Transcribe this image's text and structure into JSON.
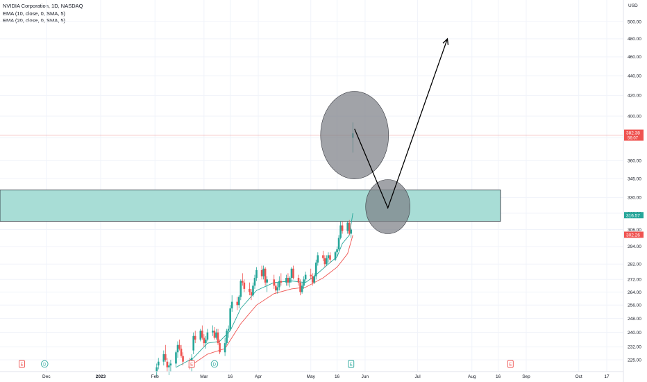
{
  "legend": {
    "symbol": "NVIDIA Corporation, 1D, NASDAQ",
    "ema1": "EMA (10, close, 0, SMA, 5)",
    "ema2": "EMA (20, close, 0, SMA, 5)"
  },
  "colors": {
    "up": "#26a69a",
    "down": "#ef5350",
    "ema10": "#26a69a",
    "ema20": "#ef5350",
    "zone_fill": "#a8ddd6",
    "circle_fill": "#7d7f87",
    "grid": "#f0f3fa",
    "axis_text": "#131722"
  },
  "chart_data": {
    "type": "candlestick",
    "currency": "USD",
    "y_ticks": [
      "500.00",
      "480.00",
      "460.00",
      "440.00",
      "420.00",
      "400.00",
      "380.00",
      "360.00",
      "345.00",
      "330.00",
      "318.00",
      "306.00",
      "294.00",
      "282.00",
      "272.00",
      "264.00",
      "256.00",
      "248.00",
      "240.00",
      "232.00",
      "225.00"
    ],
    "y_tick_values": [
      500,
      480,
      460,
      440,
      420,
      400,
      380,
      360,
      345,
      330,
      318,
      306,
      294,
      282,
      272,
      264,
      256,
      248,
      240,
      232,
      225
    ],
    "ylim": [
      221,
      512
    ],
    "log_scale": true,
    "x_ticks": [
      "Dec",
      "2023",
      "Feb",
      "Mar",
      "16",
      "Apr",
      "May",
      "16",
      "Jun",
      "Jul",
      "Aug",
      "16",
      "Sep",
      "Oct",
      "17"
    ],
    "x_tick_dates": [
      "2022-12-01",
      "2023-01-01",
      "2023-02-01",
      "2023-03-01",
      "2023-03-16",
      "2023-04-01",
      "2023-05-01",
      "2023-05-16",
      "2023-06-01",
      "2023-07-01",
      "2023-08-01",
      "2023-08-16",
      "2023-09-01",
      "2023-10-01",
      "2023-10-17"
    ],
    "price_labels": [
      {
        "text": "382.38",
        "sub": "56:07",
        "value": 382.38,
        "color": "#ef5350"
      },
      {
        "text": "316.57",
        "value": 316.57,
        "color": "#26a69a"
      },
      {
        "text": "302.26",
        "value": 302.26,
        "color": "#ef5350"
      }
    ],
    "event_markers": [
      {
        "text": "E",
        "date": "2022-11-17",
        "kind": "earnings"
      },
      {
        "text": "D",
        "date": "2022-11-30",
        "kind": "dividend"
      },
      {
        "text": "E",
        "date": "2023-02-22",
        "kind": "earnings"
      },
      {
        "text": "D",
        "date": "2023-03-07",
        "kind": "dividend"
      },
      {
        "text": "E",
        "date": "2023-05-24",
        "kind": "earnings"
      },
      {
        "text": "E",
        "date": "2023-08-23",
        "kind": "earnings"
      }
    ],
    "zone": {
      "from": 312,
      "to": 336
    },
    "horizontal_line": 382.38,
    "circles": [
      {
        "date": "2023-05-26",
        "price": 382.38,
        "rx": 49,
        "ry": 63
      },
      {
        "date": "2023-06-14",
        "price": 323,
        "rx": 32,
        "ry": 39
      }
    ],
    "arrow_path": [
      {
        "date": "2023-05-26",
        "price": 388
      },
      {
        "date": "2023-06-14",
        "price": 322
      },
      {
        "date": "2023-07-18",
        "price": 480
      }
    ],
    "candles": [
      {
        "date": "2023-02-02",
        "o": 219,
        "h": 223,
        "l": 216,
        "c": 221
      },
      {
        "date": "2023-02-03",
        "o": 222,
        "h": 226,
        "l": 220,
        "c": 224
      },
      {
        "date": "2023-02-06",
        "o": 224,
        "h": 230,
        "l": 222,
        "c": 228
      },
      {
        "date": "2023-02-07",
        "o": 228,
        "h": 233,
        "l": 224,
        "c": 225
      },
      {
        "date": "2023-02-08",
        "o": 224,
        "h": 226,
        "l": 219,
        "c": 221
      },
      {
        "date": "2023-02-09",
        "o": 221,
        "h": 224,
        "l": 217,
        "c": 222
      },
      {
        "date": "2023-02-10",
        "o": 222,
        "h": 225,
        "l": 219,
        "c": 223
      },
      {
        "date": "2023-02-13",
        "o": 223,
        "h": 230,
        "l": 221,
        "c": 229
      },
      {
        "date": "2023-02-14",
        "o": 229,
        "h": 235,
        "l": 226,
        "c": 233
      },
      {
        "date": "2023-02-15",
        "o": 233,
        "h": 236,
        "l": 230,
        "c": 231
      },
      {
        "date": "2023-02-16",
        "o": 231,
        "h": 233,
        "l": 226,
        "c": 227
      },
      {
        "date": "2023-02-17",
        "o": 227,
        "h": 229,
        "l": 222,
        "c": 224
      },
      {
        "date": "2023-02-21",
        "o": 224,
        "h": 226,
        "l": 220,
        "c": 222
      },
      {
        "date": "2023-02-22",
        "o": 222,
        "h": 228,
        "l": 219,
        "c": 226
      },
      {
        "date": "2023-02-23",
        "o": 230,
        "h": 240,
        "l": 228,
        "c": 238
      },
      {
        "date": "2023-02-24",
        "o": 238,
        "h": 241,
        "l": 234,
        "c": 236
      },
      {
        "date": "2023-02-27",
        "o": 236,
        "h": 242,
        "l": 235,
        "c": 241
      },
      {
        "date": "2023-02-28",
        "o": 241,
        "h": 244,
        "l": 236,
        "c": 237
      },
      {
        "date": "2023-03-01",
        "o": 237,
        "h": 239,
        "l": 232,
        "c": 234
      },
      {
        "date": "2023-03-02",
        "o": 234,
        "h": 238,
        "l": 231,
        "c": 236
      },
      {
        "date": "2023-03-03",
        "o": 236,
        "h": 242,
        "l": 235,
        "c": 240
      },
      {
        "date": "2023-03-06",
        "o": 240,
        "h": 244,
        "l": 238,
        "c": 241
      },
      {
        "date": "2023-03-07",
        "o": 241,
        "h": 243,
        "l": 236,
        "c": 237
      },
      {
        "date": "2023-03-08",
        "o": 237,
        "h": 242,
        "l": 236,
        "c": 240
      },
      {
        "date": "2023-03-09",
        "o": 240,
        "h": 242,
        "l": 233,
        "c": 234
      },
      {
        "date": "2023-03-10",
        "o": 234,
        "h": 236,
        "l": 228,
        "c": 229
      },
      {
        "date": "2023-03-13",
        "o": 229,
        "h": 237,
        "l": 227,
        "c": 234
      },
      {
        "date": "2023-03-14",
        "o": 234,
        "h": 242,
        "l": 233,
        "c": 241
      },
      {
        "date": "2023-03-15",
        "o": 241,
        "h": 244,
        "l": 237,
        "c": 242
      },
      {
        "date": "2023-03-16",
        "o": 242,
        "h": 256,
        "l": 241,
        "c": 254
      },
      {
        "date": "2023-03-17",
        "o": 254,
        "h": 262,
        "l": 252,
        "c": 258
      },
      {
        "date": "2023-03-20",
        "o": 258,
        "h": 261,
        "l": 253,
        "c": 256
      },
      {
        "date": "2023-03-21",
        "o": 256,
        "h": 262,
        "l": 254,
        "c": 261
      },
      {
        "date": "2023-03-22",
        "o": 261,
        "h": 272,
        "l": 259,
        "c": 271
      },
      {
        "date": "2023-03-23",
        "o": 271,
        "h": 276,
        "l": 268,
        "c": 270
      },
      {
        "date": "2023-03-24",
        "o": 270,
        "h": 272,
        "l": 264,
        "c": 266
      },
      {
        "date": "2023-03-27",
        "o": 266,
        "h": 270,
        "l": 262,
        "c": 264
      },
      {
        "date": "2023-03-28",
        "o": 264,
        "h": 266,
        "l": 259,
        "c": 262
      },
      {
        "date": "2023-03-29",
        "o": 262,
        "h": 270,
        "l": 261,
        "c": 268
      },
      {
        "date": "2023-03-30",
        "o": 268,
        "h": 275,
        "l": 266,
        "c": 273
      },
      {
        "date": "2023-03-31",
        "o": 273,
        "h": 280,
        "l": 271,
        "c": 278
      },
      {
        "date": "2023-04-03",
        "o": 278,
        "h": 281,
        "l": 272,
        "c": 274
      },
      {
        "date": "2023-04-04",
        "o": 274,
        "h": 281,
        "l": 272,
        "c": 279
      },
      {
        "date": "2023-04-05",
        "o": 279,
        "h": 280,
        "l": 268,
        "c": 270
      },
      {
        "date": "2023-04-06",
        "o": 270,
        "h": 274,
        "l": 264,
        "c": 272
      },
      {
        "date": "2023-04-10",
        "o": 272,
        "h": 275,
        "l": 266,
        "c": 268
      },
      {
        "date": "2023-04-11",
        "o": 268,
        "h": 270,
        "l": 263,
        "c": 265
      },
      {
        "date": "2023-04-12",
        "o": 265,
        "h": 270,
        "l": 263,
        "c": 267
      },
      {
        "date": "2023-04-13",
        "o": 267,
        "h": 274,
        "l": 265,
        "c": 271
      },
      {
        "date": "2023-04-14",
        "o": 271,
        "h": 276,
        "l": 268,
        "c": 270
      },
      {
        "date": "2023-04-17",
        "o": 270,
        "h": 275,
        "l": 268,
        "c": 273
      },
      {
        "date": "2023-04-18",
        "o": 273,
        "h": 276,
        "l": 268,
        "c": 270
      },
      {
        "date": "2023-04-19",
        "o": 270,
        "h": 274,
        "l": 267,
        "c": 273
      },
      {
        "date": "2023-04-20",
        "o": 273,
        "h": 280,
        "l": 270,
        "c": 279
      },
      {
        "date": "2023-04-21",
        "o": 279,
        "h": 281,
        "l": 272,
        "c": 273
      },
      {
        "date": "2023-04-24",
        "o": 273,
        "h": 275,
        "l": 268,
        "c": 270
      },
      {
        "date": "2023-04-25",
        "o": 270,
        "h": 272,
        "l": 262,
        "c": 264
      },
      {
        "date": "2023-04-26",
        "o": 264,
        "h": 270,
        "l": 263,
        "c": 268
      },
      {
        "date": "2023-04-27",
        "o": 268,
        "h": 274,
        "l": 266,
        "c": 272
      },
      {
        "date": "2023-04-28",
        "o": 272,
        "h": 277,
        "l": 270,
        "c": 275
      },
      {
        "date": "2023-05-01",
        "o": 275,
        "h": 279,
        "l": 272,
        "c": 274
      },
      {
        "date": "2023-05-02",
        "o": 274,
        "h": 276,
        "l": 268,
        "c": 270
      },
      {
        "date": "2023-05-03",
        "o": 270,
        "h": 276,
        "l": 269,
        "c": 274
      },
      {
        "date": "2023-05-04",
        "o": 274,
        "h": 285,
        "l": 272,
        "c": 283
      },
      {
        "date": "2023-05-05",
        "o": 283,
        "h": 290,
        "l": 281,
        "c": 288
      },
      {
        "date": "2023-05-08",
        "o": 288,
        "h": 291,
        "l": 284,
        "c": 286
      },
      {
        "date": "2023-05-09",
        "o": 286,
        "h": 288,
        "l": 280,
        "c": 282
      },
      {
        "date": "2023-05-10",
        "o": 282,
        "h": 288,
        "l": 281,
        "c": 286
      },
      {
        "date": "2023-05-11",
        "o": 286,
        "h": 290,
        "l": 283,
        "c": 288
      },
      {
        "date": "2023-05-12",
        "o": 288,
        "h": 290,
        "l": 283,
        "c": 285
      },
      {
        "date": "2023-05-15",
        "o": 285,
        "h": 291,
        "l": 284,
        "c": 290
      },
      {
        "date": "2023-05-16",
        "o": 290,
        "h": 294,
        "l": 287,
        "c": 292
      },
      {
        "date": "2023-05-17",
        "o": 292,
        "h": 302,
        "l": 291,
        "c": 300
      },
      {
        "date": "2023-05-18",
        "o": 300,
        "h": 312,
        "l": 299,
        "c": 309
      },
      {
        "date": "2023-05-19",
        "o": 309,
        "h": 312,
        "l": 303,
        "c": 305
      },
      {
        "date": "2023-05-22",
        "o": 305,
        "h": 312,
        "l": 303,
        "c": 311
      },
      {
        "date": "2023-05-23",
        "o": 311,
        "h": 313,
        "l": 302,
        "c": 303
      },
      {
        "date": "2023-05-24",
        "o": 303,
        "h": 307,
        "l": 300,
        "c": 306
      },
      {
        "date": "2023-05-25",
        "o": 380,
        "h": 394,
        "l": 367,
        "c": 384
      }
    ],
    "ema10": [
      {
        "date": "2023-02-13",
        "v": 221
      },
      {
        "date": "2023-02-23",
        "v": 226
      },
      {
        "date": "2023-03-03",
        "v": 234
      },
      {
        "date": "2023-03-10",
        "v": 235
      },
      {
        "date": "2023-03-16",
        "v": 241
      },
      {
        "date": "2023-03-22",
        "v": 254
      },
      {
        "date": "2023-03-31",
        "v": 265
      },
      {
        "date": "2023-04-10",
        "v": 270
      },
      {
        "date": "2023-04-20",
        "v": 271
      },
      {
        "date": "2023-04-28",
        "v": 270
      },
      {
        "date": "2023-05-04",
        "v": 275
      },
      {
        "date": "2023-05-11",
        "v": 282
      },
      {
        "date": "2023-05-16",
        "v": 287
      },
      {
        "date": "2023-05-19",
        "v": 296
      },
      {
        "date": "2023-05-23",
        "v": 302
      },
      {
        "date": "2023-05-25",
        "v": 318
      }
    ],
    "ema20": [
      {
        "date": "2023-02-20",
        "v": 221
      },
      {
        "date": "2023-03-03",
        "v": 228
      },
      {
        "date": "2023-03-13",
        "v": 231
      },
      {
        "date": "2023-03-22",
        "v": 245
      },
      {
        "date": "2023-03-31",
        "v": 256
      },
      {
        "date": "2023-04-10",
        "v": 263
      },
      {
        "date": "2023-04-20",
        "v": 266
      },
      {
        "date": "2023-04-28",
        "v": 267
      },
      {
        "date": "2023-05-08",
        "v": 273
      },
      {
        "date": "2023-05-16",
        "v": 280
      },
      {
        "date": "2023-05-22",
        "v": 289
      },
      {
        "date": "2023-05-25",
        "v": 302
      }
    ]
  }
}
